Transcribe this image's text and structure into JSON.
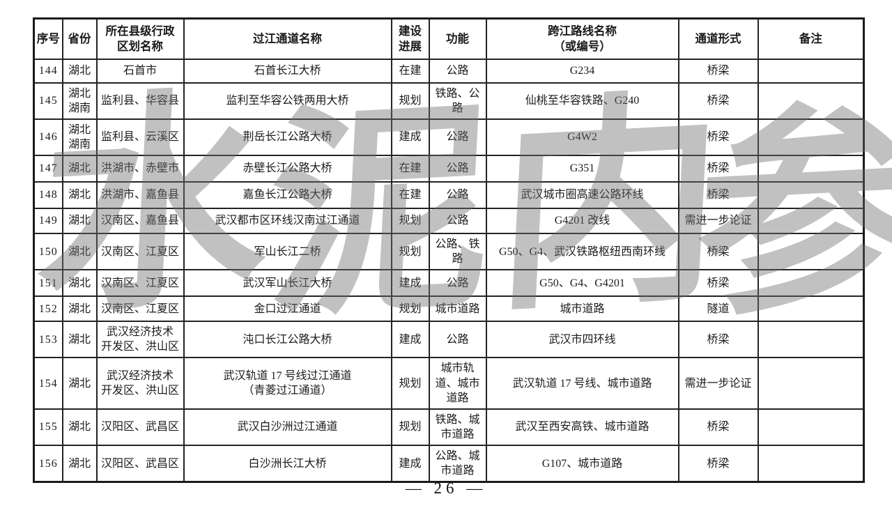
{
  "table": {
    "headers": [
      "序号",
      "省份",
      "所在县级行政\n区划名称",
      "过江通道名称",
      "建设进展",
      "功能",
      "跨江路线名称\n（或编号）",
      "通道形式",
      "备注"
    ],
    "rows": [
      {
        "no": "144",
        "province": "湖北",
        "county": "石首市",
        "name": "石首长江大桥",
        "progress": "在建",
        "function": "公路",
        "route": "G234",
        "form": "桥梁",
        "note": ""
      },
      {
        "no": "145",
        "province": "湖北\n湖南",
        "county": "监利县、华容县",
        "name": "监利至华容公铁两用大桥",
        "progress": "规划",
        "function": "铁路、公路",
        "route": "仙桃至华容铁路、G240",
        "form": "桥梁",
        "note": ""
      },
      {
        "no": "146",
        "province": "湖北\n湖南",
        "county": "监利县、云溪区",
        "name": "荆岳长江公路大桥",
        "progress": "建成",
        "function": "公路",
        "route": "G4W2",
        "form": "桥梁",
        "note": ""
      },
      {
        "no": "147",
        "province": "湖北",
        "county": "洪湖市、赤壁市",
        "name": "赤壁长江公路大桥",
        "progress": "在建",
        "function": "公路",
        "route": "G351",
        "form": "桥梁",
        "note": ""
      },
      {
        "no": "148",
        "province": "湖北",
        "county": "洪湖市、嘉鱼县",
        "name": "嘉鱼长江公路大桥",
        "progress": "在建",
        "function": "公路",
        "route": "武汉城市圈高速公路环线",
        "form": "桥梁",
        "note": ""
      },
      {
        "no": "149",
        "province": "湖北",
        "county": "汉南区、嘉鱼县",
        "name": "武汉都市区环线汉南过江通道",
        "progress": "规划",
        "function": "公路",
        "route": "G4201 改线",
        "form": "需进一步论证",
        "note": ""
      },
      {
        "no": "150",
        "province": "湖北",
        "county": "汉南区、江夏区",
        "name": "军山长江二桥",
        "progress": "规划",
        "function": "公路、铁路",
        "route": "G50、G4、武汉铁路枢纽西南环线",
        "form": "桥梁",
        "note": ""
      },
      {
        "no": "151",
        "province": "湖北",
        "county": "汉南区、江夏区",
        "name": "武汉军山长江大桥",
        "progress": "建成",
        "function": "公路",
        "route": "G50、G4、G4201",
        "form": "桥梁",
        "note": ""
      },
      {
        "no": "152",
        "province": "湖北",
        "county": "汉南区、江夏区",
        "name": "金口过江通道",
        "progress": "规划",
        "function": "城市道路",
        "route": "城市道路",
        "form": "隧道",
        "note": ""
      },
      {
        "no": "153",
        "province": "湖北",
        "county": "武汉经济技术\n开发区、洪山区",
        "name": "沌口长江公路大桥",
        "progress": "建成",
        "function": "公路",
        "route": "武汉市四环线",
        "form": "桥梁",
        "note": ""
      },
      {
        "no": "154",
        "province": "湖北",
        "county": "武汉经济技术\n开发区、洪山区",
        "name": "武汉轨道 17 号线过江通道\n（青菱过江通道）",
        "progress": "规划",
        "function": "城市轨道、城市道路",
        "route": "武汉轨道 17 号线、城市道路",
        "form": "需进一步论证",
        "note": ""
      },
      {
        "no": "155",
        "province": "湖北",
        "county": "汉阳区、武昌区",
        "name": "武汉白沙洲过江通道",
        "progress": "规划",
        "function": "铁路、城市道路",
        "route": "武汉至西安高铁、城市道路",
        "form": "桥梁",
        "note": ""
      },
      {
        "no": "156",
        "province": "湖北",
        "county": "汉阳区、武昌区",
        "name": "白沙洲长江大桥",
        "progress": "建成",
        "function": "公路、城市道路",
        "route": "G107、城市道路",
        "form": "桥梁",
        "note": ""
      }
    ]
  },
  "watermark": {
    "chars": [
      "水",
      "泥",
      "内",
      "参"
    ]
  },
  "footer": {
    "text": "— 26 —"
  }
}
